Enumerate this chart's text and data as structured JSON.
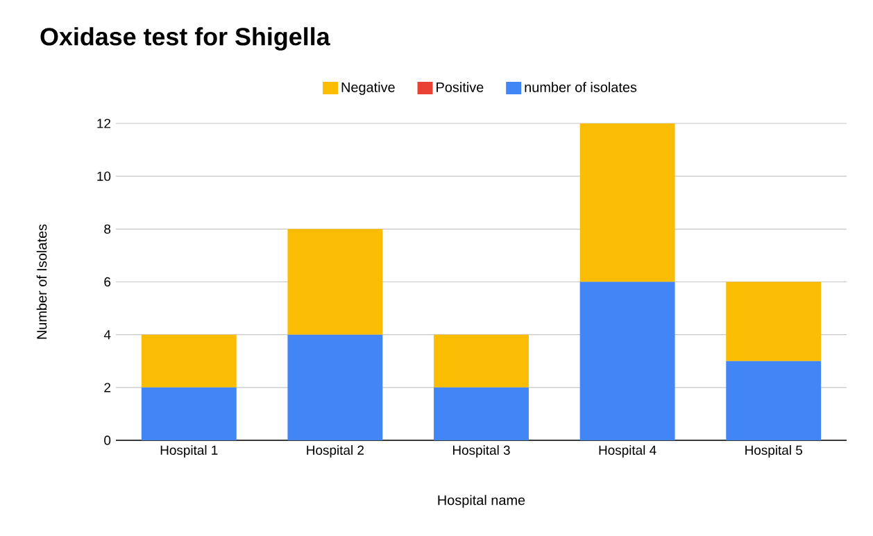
{
  "chart_data": {
    "type": "bar",
    "title": "Oxidase test for Shigella",
    "xlabel": "Hospital name",
    "ylabel": "Number of Isolates",
    "categories": [
      "Hospital 1",
      "Hospital 2",
      "Hospital 3",
      "Hospital 4",
      "Hospital 5"
    ],
    "series": [
      {
        "name": "number of isolates",
        "color": "#4285f4",
        "values": [
          2,
          4,
          2,
          6,
          3
        ]
      },
      {
        "name": "Positive",
        "color": "#ea4335",
        "values": [
          0,
          0,
          0,
          0,
          0
        ]
      },
      {
        "name": "Negative",
        "color": "#fbbc04",
        "values": [
          2,
          4,
          2,
          6,
          3
        ]
      }
    ],
    "stacked": true,
    "ylim": [
      0,
      12
    ],
    "yticks": [
      0,
      2,
      4,
      6,
      8,
      10,
      12
    ],
    "grid": "y",
    "legend": "top"
  }
}
